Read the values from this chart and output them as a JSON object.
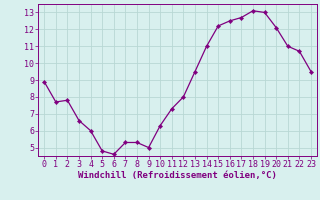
{
  "x": [
    0,
    1,
    2,
    3,
    4,
    5,
    6,
    7,
    8,
    9,
    10,
    11,
    12,
    13,
    14,
    15,
    16,
    17,
    18,
    19,
    20,
    21,
    22,
    23
  ],
  "y": [
    8.9,
    7.7,
    7.8,
    6.6,
    6.0,
    4.8,
    4.6,
    5.3,
    5.3,
    5.0,
    6.3,
    7.3,
    8.0,
    9.5,
    11.0,
    12.2,
    12.5,
    12.7,
    13.1,
    13.0,
    12.1,
    11.0,
    10.7,
    9.5
  ],
  "line_color": "#800080",
  "marker": "D",
  "marker_size": 2.2,
  "bg_color": "#d8f0ee",
  "grid_color": "#b8d8d4",
  "axis_color": "#800080",
  "tick_color": "#800080",
  "xlabel": "Windchill (Refroidissement éolien,°C)",
  "ylim": [
    4.5,
    13.5
  ],
  "xlim": [
    -0.5,
    23.5
  ],
  "yticks": [
    5,
    6,
    7,
    8,
    9,
    10,
    11,
    12,
    13
  ],
  "xticks": [
    0,
    1,
    2,
    3,
    4,
    5,
    6,
    7,
    8,
    9,
    10,
    11,
    12,
    13,
    14,
    15,
    16,
    17,
    18,
    19,
    20,
    21,
    22,
    23
  ],
  "font_size": 6.0,
  "xlabel_font_size": 6.5
}
